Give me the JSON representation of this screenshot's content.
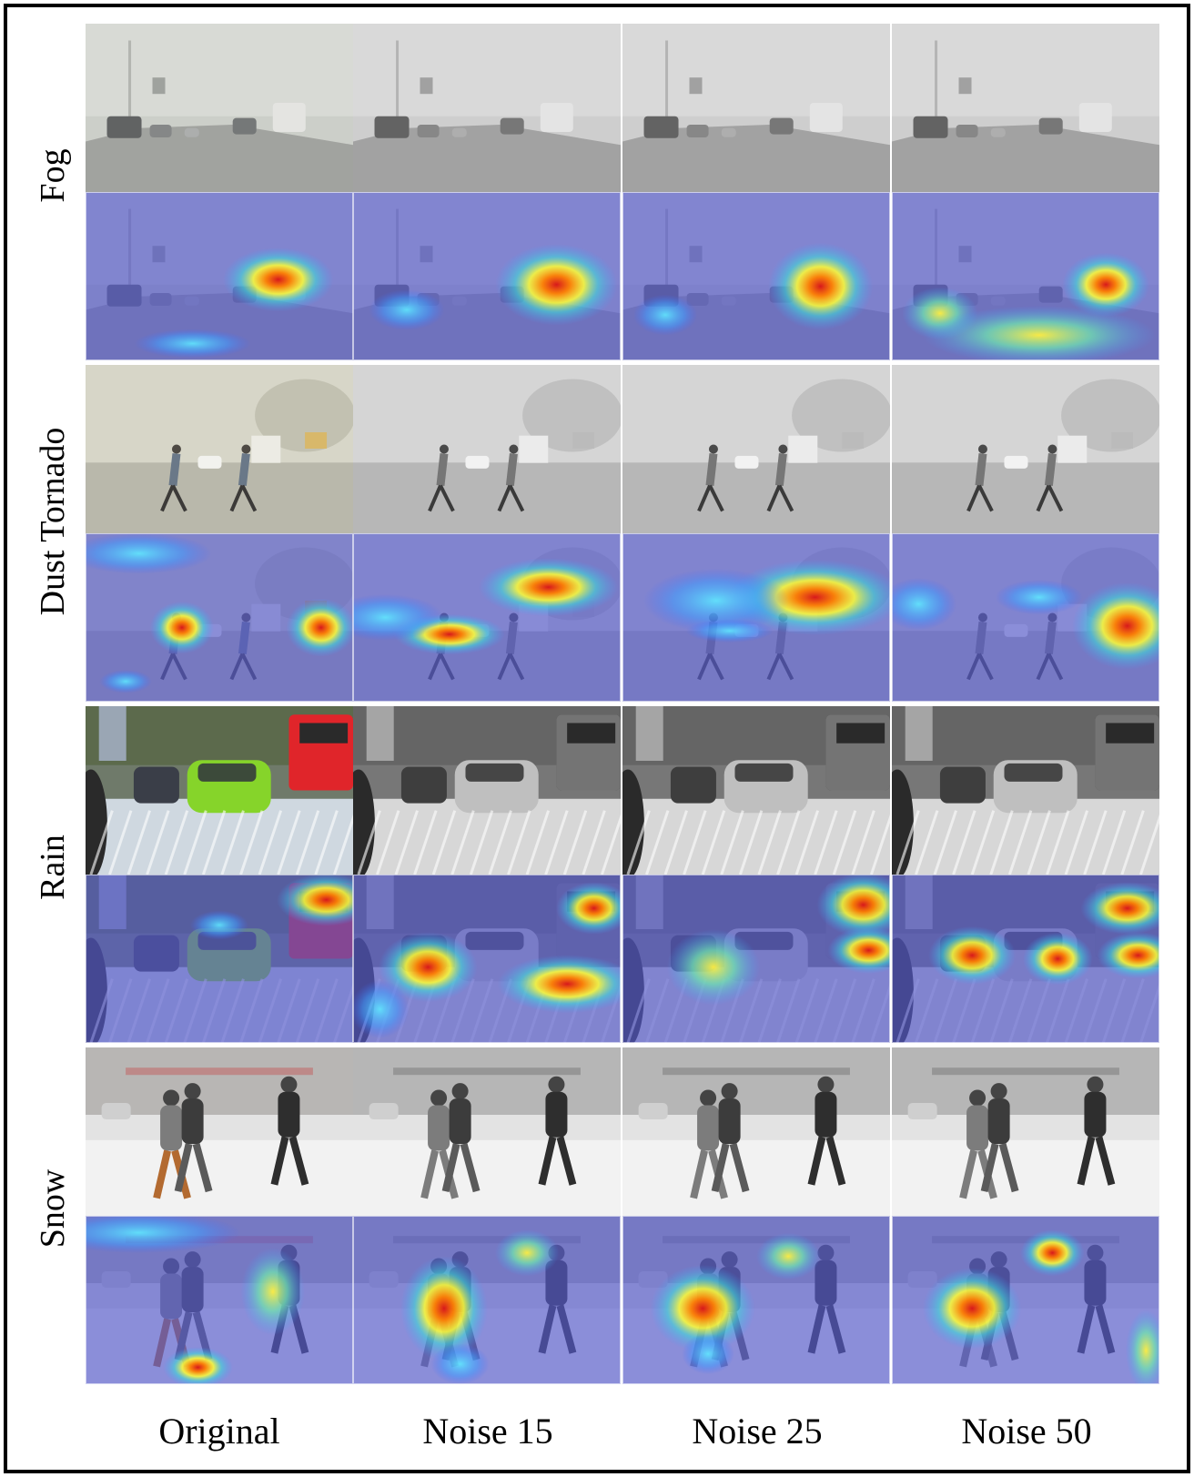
{
  "figure": {
    "rows": [
      {
        "label": "Fog",
        "scene": "fog"
      },
      {
        "label": "Dust Tornado",
        "scene": "dust"
      },
      {
        "label": "Rain",
        "scene": "rain"
      },
      {
        "label": "Snow",
        "scene": "snow"
      }
    ],
    "columns": [
      {
        "label": "Original",
        "mode": "color"
      },
      {
        "label": "Noise 15",
        "mode": "gray"
      },
      {
        "label": "Noise 25",
        "mode": "gray"
      },
      {
        "label": "Noise 50",
        "mode": "gray"
      }
    ],
    "heatmap_colormap": "jet",
    "heatmap_background": "#4b4fc8"
  }
}
